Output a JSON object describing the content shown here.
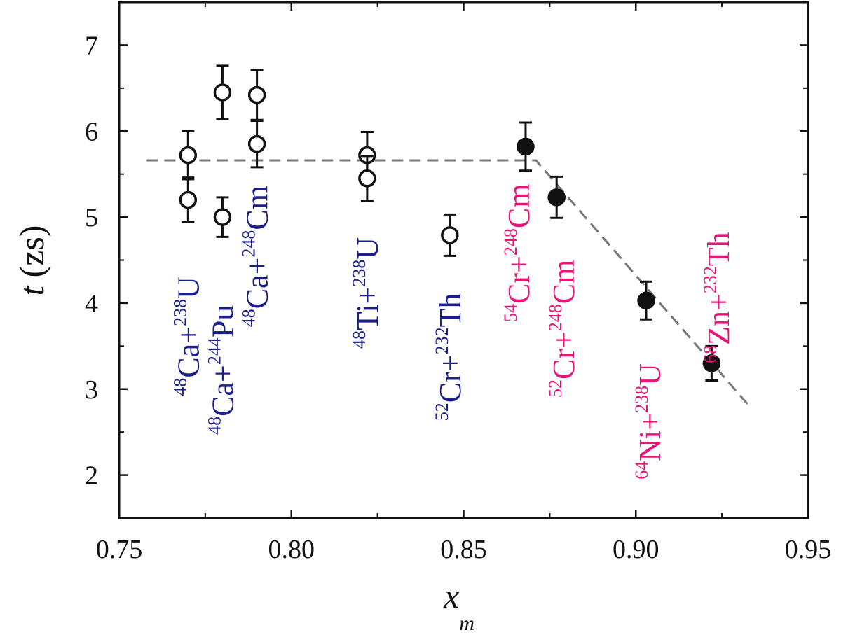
{
  "chart_data": {
    "type": "scatter",
    "title": "",
    "xlabel": {
      "base": "x",
      "sub": "m"
    },
    "ylabel": {
      "var": "t",
      "unit": "(zs)"
    },
    "xlim": [
      0.75,
      0.95
    ],
    "ylim": [
      1.5,
      7.5
    ],
    "xticks": [
      0.75,
      0.8,
      0.85,
      0.9,
      0.95
    ],
    "xtick_labels": [
      "0.75",
      "0.80",
      "0.85",
      "0.90",
      "0.95"
    ],
    "yticks": [
      2,
      3,
      4,
      5,
      6,
      7
    ],
    "ytick_labels": [
      "2",
      "3",
      "4",
      "5",
      "6",
      "7"
    ],
    "grid": false,
    "colors": {
      "hot": "#1a1f8a",
      "cold": "#e8147a",
      "axis": "#111111",
      "trend": "#777777"
    },
    "series": [
      {
        "marker": "open-circle",
        "points": [
          {
            "x": 0.77,
            "y": 5.72,
            "err": 0.28
          },
          {
            "x": 0.77,
            "y": 5.2,
            "err": 0.26
          },
          {
            "x": 0.78,
            "y": 6.45,
            "err": 0.31
          },
          {
            "x": 0.78,
            "y": 5.0,
            "err": 0.23
          },
          {
            "x": 0.79,
            "y": 6.42,
            "err": 0.29
          },
          {
            "x": 0.79,
            "y": 5.85,
            "err": 0.27
          },
          {
            "x": 0.822,
            "y": 5.72,
            "err": 0.27
          },
          {
            "x": 0.822,
            "y": 5.45,
            "err": 0.26
          },
          {
            "x": 0.846,
            "y": 4.79,
            "err": 0.24
          }
        ]
      },
      {
        "marker": "filled-circle",
        "points": [
          {
            "x": 0.868,
            "y": 5.82,
            "err": 0.28
          },
          {
            "x": 0.877,
            "y": 5.23,
            "err": 0.24
          },
          {
            "x": 0.903,
            "y": 4.03,
            "err": 0.22
          },
          {
            "x": 0.922,
            "y": 3.3,
            "err": 0.2
          }
        ]
      }
    ],
    "trend_line": {
      "points": [
        [
          0.758,
          5.66
        ],
        [
          0.871,
          5.66
        ],
        [
          0.933,
          2.8
        ]
      ],
      "style": "dashed"
    },
    "annotations": [
      {
        "a": "48",
        "p1": "Ca+",
        "b": "238",
        "p2": "U",
        "group": "hot",
        "x": 0.77,
        "y": 2.92
      },
      {
        "a": "48",
        "p1": "Ca+",
        "b": "244",
        "p2": "Pu",
        "group": "hot",
        "x": 0.78,
        "y": 2.47
      },
      {
        "a": "48",
        "p1": "Ca+",
        "b": "248",
        "p2": "Cm",
        "group": "hot",
        "x": 0.79,
        "y": 3.72
      },
      {
        "a": "48",
        "p1": "Ti+",
        "b": "238",
        "p2": "U",
        "group": "hot",
        "x": 0.822,
        "y": 3.47
      },
      {
        "a": "52",
        "p1": "Cr+",
        "b": "232",
        "p2": "Th",
        "group": "hot",
        "x": 0.846,
        "y": 2.63
      },
      {
        "a": "54",
        "p1": "Cr+",
        "b": "248",
        "p2": "Cm",
        "group": "cold",
        "x": 0.866,
        "y": 3.78
      },
      {
        "a": "52",
        "p1": "Cr+",
        "b": "248",
        "p2": "Cm",
        "group": "cold",
        "x": 0.879,
        "y": 2.9
      },
      {
        "a": "64",
        "p1": "Ni+",
        "b": "238",
        "p2": "U",
        "group": "cold",
        "x": 0.904,
        "y": 1.95
      },
      {
        "a": "68",
        "p1": "Zn+",
        "b": "232",
        "p2": "Th",
        "group": "cold",
        "x": 0.924,
        "y": 3.3
      }
    ]
  }
}
